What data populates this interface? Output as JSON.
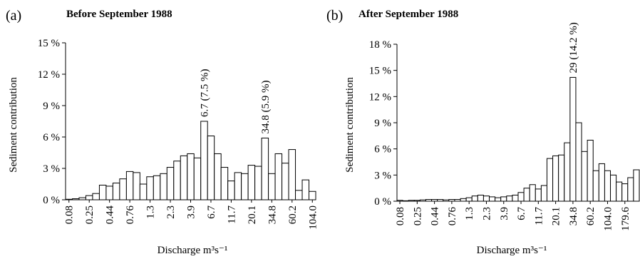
{
  "chart_data": [
    {
      "type": "bar",
      "panel_label": "(a)",
      "title": "Before September 1988",
      "ylabel": "Sediment contribution",
      "xlabel": "Discharge m³s⁻¹",
      "ylim": [
        0,
        15
      ],
      "yticks": [
        0,
        3,
        6,
        9,
        12,
        15
      ],
      "ytick_labels": [
        "0 %",
        "3 %",
        "6 %",
        "9 %",
        "12 %",
        "15 %"
      ],
      "tick_labels": [
        "0.08",
        "0.25",
        "0.44",
        "0.76",
        "1.3",
        "2.3",
        "3.9",
        "6.7",
        "11.7",
        "20.1",
        "34.8",
        "60.2",
        "104.0"
      ],
      "values": [
        0.05,
        0.1,
        0.2,
        0.4,
        0.6,
        1.4,
        1.3,
        1.6,
        2.0,
        2.7,
        2.6,
        1.5,
        2.2,
        2.3,
        2.5,
        3.1,
        3.7,
        4.2,
        4.4,
        4.0,
        7.5,
        6.1,
        4.4,
        3.1,
        1.8,
        2.6,
        2.5,
        3.3,
        3.2,
        5.9,
        2.5,
        4.4,
        3.5,
        4.8,
        0.9,
        1.9,
        0.8
      ],
      "annotations": [
        {
          "text": "6.7 (7.5 %)",
          "bar_index": 20
        },
        {
          "text": "34.8 (5.9 %)",
          "bar_index": 29
        }
      ]
    },
    {
      "type": "bar",
      "panel_label": "(b)",
      "title": "After September 1988",
      "ylabel": "Sediment contribution",
      "xlabel": "Discharge m³s⁻¹",
      "ylim": [
        0,
        18
      ],
      "yticks": [
        0,
        3,
        6,
        9,
        12,
        15,
        18
      ],
      "ytick_labels": [
        "0 %",
        "3 %",
        "6 %",
        "9 %",
        "12 %",
        "15 %",
        "18 %"
      ],
      "tick_labels": [
        "0.08",
        "0.25",
        "0.44",
        "0.76",
        "1.3",
        "2.3",
        "3.9",
        "6.7",
        "11.7",
        "20.1",
        "34.8",
        "60.2",
        "104.0",
        "179.6"
      ],
      "values": [
        0.1,
        0.05,
        0.1,
        0.1,
        0.15,
        0.2,
        0.2,
        0.2,
        0.15,
        0.2,
        0.2,
        0.3,
        0.4,
        0.6,
        0.7,
        0.6,
        0.5,
        0.4,
        0.5,
        0.6,
        0.7,
        1.0,
        1.5,
        1.9,
        1.4,
        1.8,
        4.9,
        5.2,
        5.3,
        6.7,
        14.2,
        9.0,
        5.7,
        7.0,
        3.5,
        4.3,
        3.5,
        3.0,
        2.2,
        2.0,
        2.7,
        3.6
      ],
      "annotations": [
        {
          "text": "29 (14.2 %)",
          "bar_index": 30
        }
      ]
    }
  ]
}
